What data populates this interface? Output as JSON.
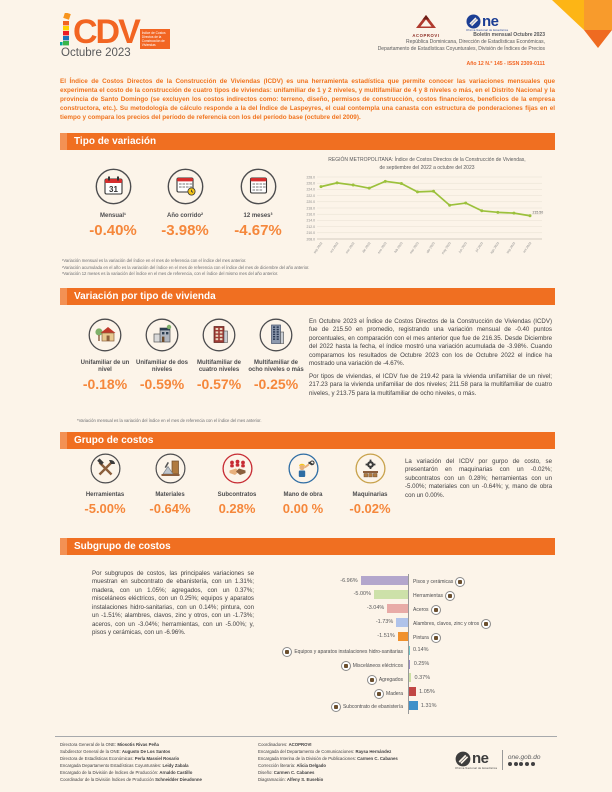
{
  "header": {
    "logo_acronym": "CDV",
    "logo_caption": "Índice de Costos Directos de la Construcción de Viviendas",
    "edition": "Octubre 2023",
    "acoprovi_label": "ACOPROVI",
    "one_label": "ne",
    "one_caption": "Oficina Nacional de Estadística",
    "bulletin_line1": "Boletín mensual Octubre 2023",
    "bulletin_line2": "República Dominicana, Dirección de Estadísticas Económicas,",
    "bulletin_line3": "Departamento de Estadísticas Coyunturales, División de Índices de Precios",
    "issue_line": "Año 12 N.° 145 - ISSN 2309-0111"
  },
  "intro": "El Índice de Costos Directos de la Construcción de Viviendas (ICDV) es una herramienta estadística que permite conocer las variaciones mensuales que experimenta el costo de la construcción de cuatro tipos de viviendas: unifamiliar de 1 y 2 niveles, y multifamiliar de 4 y 8 niveles o más, en el Distrito Nacional y la provincia de Santo Domingo (se excluyen los costos indirectos como: terreno, diseño, permisos de construcción, costos financieros, beneficios de la empresa constructora, etc.). Su metodología de cálculo responde a la del Índice de Laspeyres, el cual contempla una canasta con estructura de ponderaciones fijas en el tiempo y compara los precios del período de referencia con los del período base (octubre del 2009).",
  "tipo": {
    "title": "Tipo de variación",
    "items": [
      {
        "label": "Mensual¹",
        "value": "-0.40%"
      },
      {
        "label": "Año corrido²",
        "value": "-3.98%"
      },
      {
        "label": "12 meses³",
        "value": "-4.67%"
      }
    ],
    "footnotes": [
      "¹Variación mensual es la variación del índice en el mes de referencia con el índice del mes anterior.",
      "²Variación acumulada en el año es la variación del índice en el mes de referencia con el índice del mes de diciembre del año anterior.",
      "³Variación 12 meses es la variación del índice en el mes de referencia, con el índice del mismo mes del año anterior."
    ]
  },
  "vivienda": {
    "title": "Variación por tipo de vivienda",
    "items": [
      {
        "label": "Unifamiliar de un nivel",
        "value": "-0.18%"
      },
      {
        "label": "Unifamiliar de dos niveles",
        "value": "-0.59%"
      },
      {
        "label": "Multifamiliar de cuatro niveles",
        "value": "-0.57%"
      },
      {
        "label": "Multifamiliar de ocho niveles o más",
        "value": "-0.25%"
      }
    ],
    "footnote": "*Variación mensual es la variación del índice en el mes de referencia con el índice del mes anterior.",
    "paragraph1": "En Octubre 2023 el Índice de Costos Directos de la Construcción de Viviendas (ICDV) fue de 215.50 en promedio, registrando una variación mensual de -0.40 puntos porcentuales, en comparación con el mes anterior que fue de 216.35. Desde Diciembre del 2022 hasta la fecha, el índice mostró una variación acumulada de -3.98%. Cuando comparamos los resultados de Octubre 2023 con los de Octubre 2022 el índice ha mostrado una variación de -4.67%.",
    "paragraph2": "Por tipos de viviendas, el ICDV fue de 219.42 para la vivienda unifamiliar de un nivel; 217.23 para la vivienda unifamiliar de dos niveles; 211.58 para la multifamiliar de cuatro niveles, y 213.75 para la multifamiliar de ocho niveles, o más."
  },
  "grupo": {
    "title": "Grupo de costos",
    "items": [
      {
        "label": "Herramientas",
        "value": "-5.00%"
      },
      {
        "label": "Materiales",
        "value": "-0.64%"
      },
      {
        "label": "Subcontratos",
        "value": "0.28%"
      },
      {
        "label": "Mano de obra",
        "value": "0.00 %"
      },
      {
        "label": "Maquinarias",
        "value": "-0.02%"
      }
    ],
    "paragraph": "La variación del ICDV por gurpo de costo, se presentarón en maquinarias con un -0.02%; subcontratos con un 0.28%; herramientas con un -5.00%; materiales con un -0.64%; y, mano de obra con un 0.00%."
  },
  "subgrupo": {
    "title": "Subgrupo de costos",
    "paragraph": "Por subgrupos de costos, las principales variaciones se muestran en subcontrato de ebanistería, con un 1.31%; madera, con un 1.05%; agregados, con un 0.37%; misceláneos eléctricos, con un 0.25%; equipos y aparatos instalaciones hidro-sanitarias, con un 0.14%; pintura, con un -1.51%; alambres, clavos, zinc y otros, con un -1.73%; aceros, con un -3.04%; herramientas, con un -5.00%; y, pisos y cerámicas, con un -6.96%."
  },
  "chart_data": [
    {
      "type": "line",
      "title_line1": "REGIÓN METROPOLITANA: Índice de Costos Directos de la Construcción de Viviendas,",
      "title_line2": "de septiembre  del 2022  a octubre  del 2023",
      "x": [
        "sep 2022",
        "oct 2022",
        "nov 2022",
        "dic 2022",
        "ene 2023",
        "feb 2023",
        "mar 2023",
        "abr 2023",
        "may 2023",
        "jun 2023",
        "jul 2023",
        "ago 2023",
        "sep 2023",
        "oct 2023"
      ],
      "values": [
        224.9,
        226.1,
        225.4,
        224.4,
        226.6,
        225.9,
        223.2,
        223.4,
        218.9,
        219.6,
        217.1,
        216.6,
        216.35,
        215.5
      ],
      "ylim": [
        208,
        228
      ],
      "ytick_step": 2,
      "end_label": "215.50",
      "line_color": "#9CC13C",
      "legend": "none",
      "grid": true
    },
    {
      "type": "bar",
      "orientation": "horizontal",
      "unit": "%",
      "items": [
        {
          "label": "Pisos y cerámicas",
          "value": -6.96,
          "color": "#B3A6CC"
        },
        {
          "label": "Herramientas",
          "value": -5.0,
          "color": "#CDE1A9"
        },
        {
          "label": "Aceros",
          "value": -3.04,
          "color": "#E8ABA7"
        },
        {
          "label": "Alambres, clavos, zinc y otros",
          "value": -1.73,
          "color": "#B0C3EA"
        },
        {
          "label": "Pintura",
          "value": -1.51,
          "color": "#F0912D"
        },
        {
          "label": "Equipos y aparatos instalaciones hidro-sanitarias",
          "value": 0.14,
          "color": "#70C7CA"
        },
        {
          "label": "Misceláneos eléctricos",
          "value": 0.25,
          "color": "#9C8DC4"
        },
        {
          "label": "Agregados",
          "value": 0.37,
          "color": "#CBE0A3"
        },
        {
          "label": "Madera",
          "value": 1.05,
          "color": "#C14745"
        },
        {
          "label": "Subcontrato de ebanistería",
          "value": 1.31,
          "color": "#3F90C9"
        }
      ]
    }
  ],
  "footer": {
    "left": [
      {
        "role": "Directora General de la ONE: ",
        "name": "Miosotis Rivas Peña"
      },
      {
        "role": "Subdirector General de la ONE: ",
        "name": "Augusto De Los Santos"
      },
      {
        "role": "Directora de Estadísticas Económicas: ",
        "name": "Perla Massiel Rosario"
      },
      {
        "role": "Encargada Departamento Estadísticas Coyunturales: ",
        "name": "Leidy Zabala"
      },
      {
        "role": "Encargado de la División de Índices de Producción: ",
        "name": "Arnaldo Castillo"
      },
      {
        "role": "Coordinador de la División Índices de Producción ",
        "name": "Schneidder Dieudonne"
      }
    ],
    "right": [
      {
        "role": "Coordinadores: ",
        "name": "ACOPROVI"
      },
      {
        "role": "Encargada del Departamento de Comunicaciones: ",
        "name": "Raysa Hernández"
      },
      {
        "role": "Encargada Interina de la División de Publicaciones: ",
        "name": "Carmen C. Cabanes"
      },
      {
        "role": "Corrección literaria: ",
        "name": "Alicia Delgado"
      },
      {
        "role": "Diseño: ",
        "name": "Carmen C. Cabanes"
      },
      {
        "role": "Diagramación: ",
        "name": "Alfeny S. Eusebio"
      }
    ],
    "one_label": "ne",
    "one_caption": "Oficina Nacional de Estadística",
    "site": "one.gob.do"
  }
}
